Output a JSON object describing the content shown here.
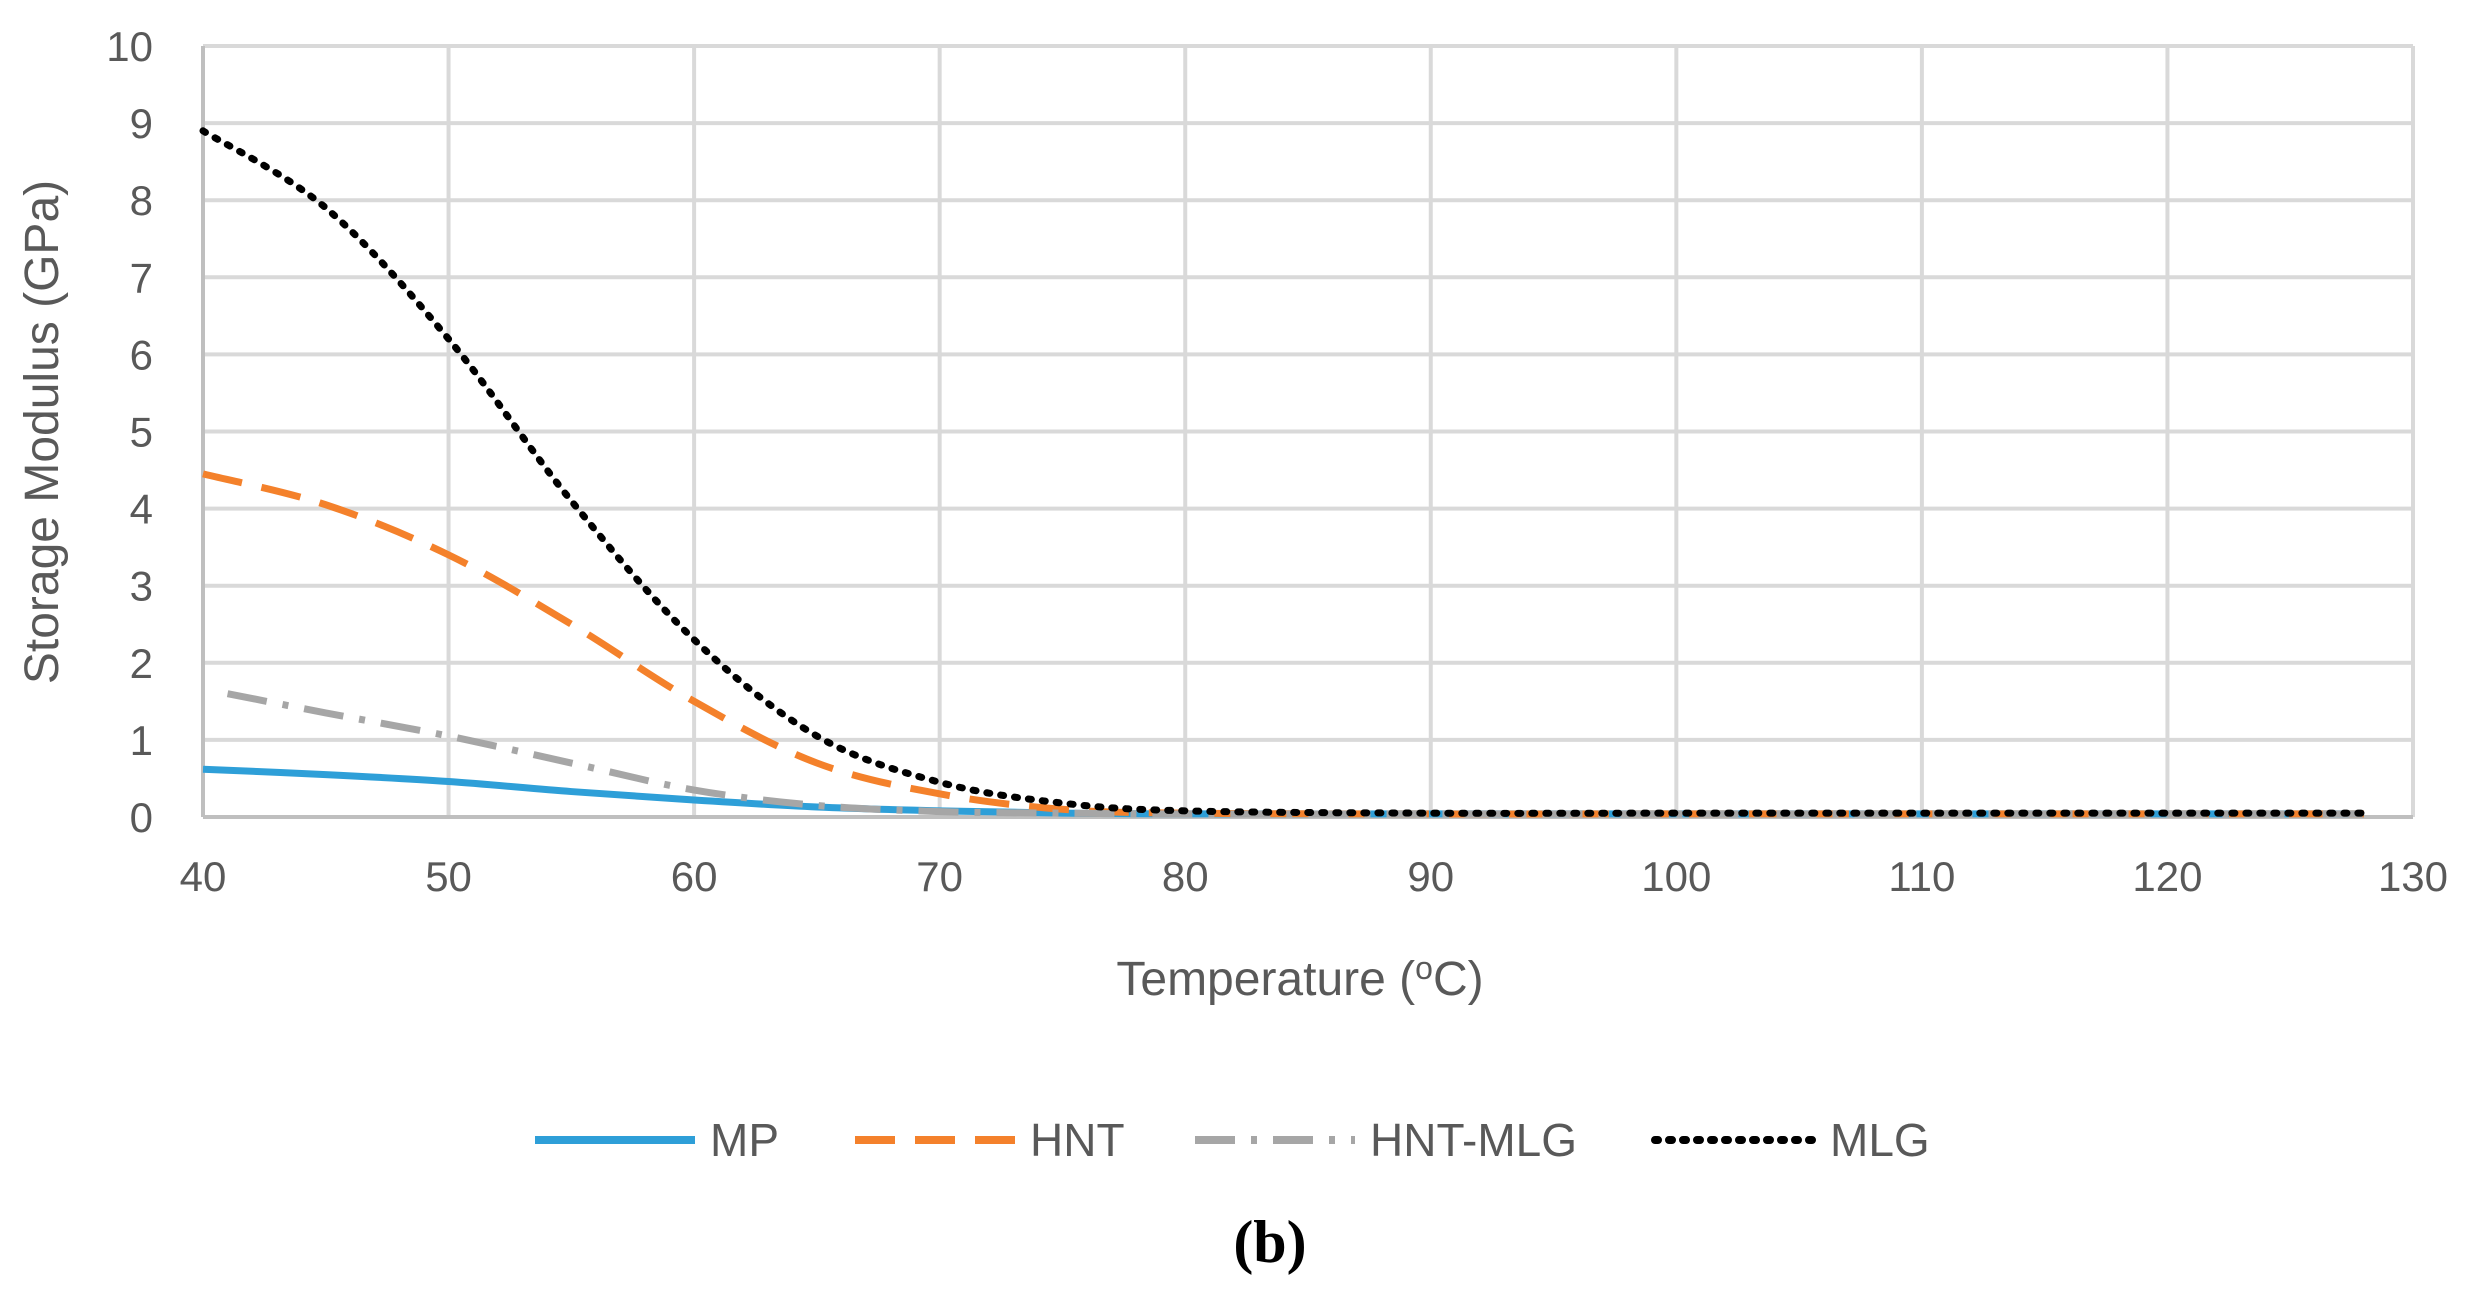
{
  "chart_data": {
    "type": "line",
    "panel_label": "(b)",
    "xlabel": "Temperature (oC)",
    "xlabel_parts": {
      "before": "Temperature (",
      "superscript": "o",
      "after": "C)"
    },
    "ylabel": "Storage Modulus (GPa)",
    "xlim": [
      40,
      130
    ],
    "ylim": [
      0,
      10
    ],
    "x_ticks": [
      "40",
      "50",
      "60",
      "70",
      "80",
      "90",
      "100",
      "110",
      "120",
      "130"
    ],
    "y_ticks": [
      "0",
      "1",
      "2",
      "3",
      "4",
      "5",
      "6",
      "7",
      "8",
      "9",
      "10"
    ],
    "grid": true,
    "legend_position": "bottom",
    "series": [
      {
        "name": "MP",
        "color": "#2E9FD8",
        "style": "solid",
        "x": [
          40,
          45,
          50,
          55,
          60,
          65,
          70,
          75,
          80,
          90,
          100,
          110,
          120,
          128
        ],
        "y": [
          0.62,
          0.55,
          0.46,
          0.33,
          0.22,
          0.13,
          0.08,
          0.05,
          0.04,
          0.04,
          0.04,
          0.04,
          0.04,
          0.04
        ]
      },
      {
        "name": "HNT",
        "color": "#F4812B",
        "style": "dashed",
        "x": [
          40,
          45,
          50,
          55,
          60,
          65,
          70,
          75,
          80,
          90,
          100,
          110,
          120,
          128
        ],
        "y": [
          4.45,
          4.05,
          3.4,
          2.5,
          1.5,
          0.7,
          0.3,
          0.1,
          0.05,
          0.04,
          0.04,
          0.04,
          0.04,
          0.04
        ]
      },
      {
        "name": "HNT-MLG",
        "color": "#A6A6A6",
        "style": "dashdot",
        "x": [
          41,
          45,
          50,
          55,
          60,
          65,
          70,
          75,
          80,
          90,
          100,
          110,
          120,
          128
        ],
        "y": [
          1.6,
          1.35,
          1.05,
          0.7,
          0.35,
          0.15,
          0.07,
          0.05,
          0.04,
          0.04,
          0.04,
          0.04,
          0.04,
          0.04
        ]
      },
      {
        "name": "MLG",
        "color": "#000000",
        "style": "dotted",
        "x": [
          40,
          45,
          50,
          55,
          60,
          65,
          70,
          75,
          80,
          90,
          100,
          110,
          120,
          128
        ],
        "y": [
          8.9,
          7.9,
          6.2,
          4.1,
          2.3,
          1.05,
          0.45,
          0.18,
          0.08,
          0.05,
          0.05,
          0.05,
          0.05,
          0.05
        ]
      }
    ]
  }
}
